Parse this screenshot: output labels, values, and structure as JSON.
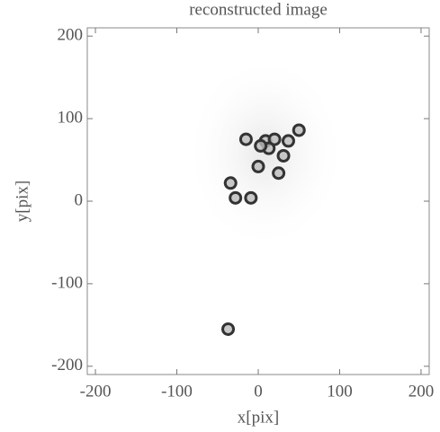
{
  "chart_data": {
    "type": "scatter",
    "title": "reconstructed image",
    "x_label": "x[pix]",
    "y_label": "y[pix]",
    "x": [
      -15,
      9,
      20,
      37,
      50,
      0,
      31,
      25,
      13,
      3,
      -34,
      -28,
      -9,
      -37
    ],
    "y": [
      75,
      73,
      75,
      73,
      86,
      42,
      55,
      34,
      64,
      67,
      22,
      4,
      4,
      -155
    ],
    "color": "#333333",
    "xlim": [
      -210,
      210
    ],
    "ylim": [
      -210,
      210
    ],
    "xticks": [
      -200,
      -100,
      0,
      100,
      200
    ],
    "yticks": [
      -200,
      -100,
      0,
      100,
      200
    ]
  }
}
